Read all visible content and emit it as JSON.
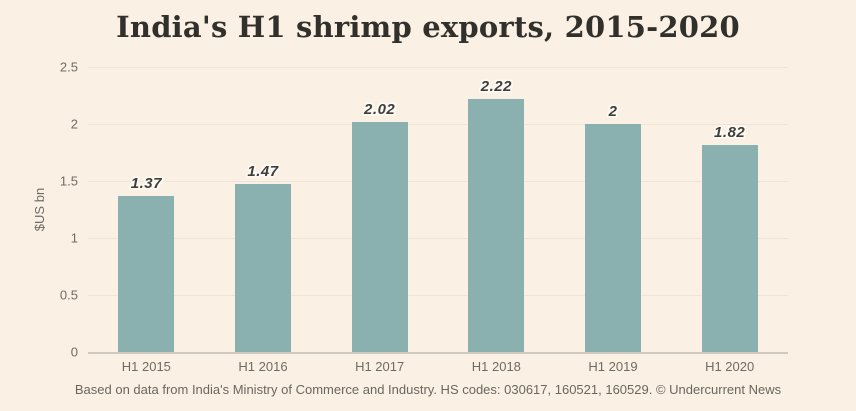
{
  "page": {
    "background_color": "#faf1e4"
  },
  "chart_data": {
    "type": "bar",
    "title": "India's H1 shrimp exports, 2015-2020",
    "categories": [
      "H1 2015",
      "H1 2016",
      "H1 2017",
      "H1 2018",
      "H1 2019",
      "H1 2020"
    ],
    "values": [
      1.37,
      1.47,
      2.02,
      2.22,
      2,
      1.82
    ],
    "value_labels": [
      "1.37",
      "1.47",
      "2.02",
      "2.22",
      "2",
      "1.82"
    ],
    "xlabel": "",
    "ylabel": "$US bn",
    "ylim": [
      0,
      2.5
    ],
    "yticks": [
      0,
      0.5,
      1,
      1.5,
      2,
      2.5
    ],
    "ytick_labels": [
      "0",
      "0.5",
      "1",
      "1.5",
      "2",
      "2.5"
    ],
    "grid": true,
    "legend": false,
    "bar_color": "#8ab1b0"
  },
  "footer": {
    "source_note": "Based on data from India's Ministry of Commerce and Industry. HS codes: 030617, 160521, 160529. © Undercurrent News"
  }
}
